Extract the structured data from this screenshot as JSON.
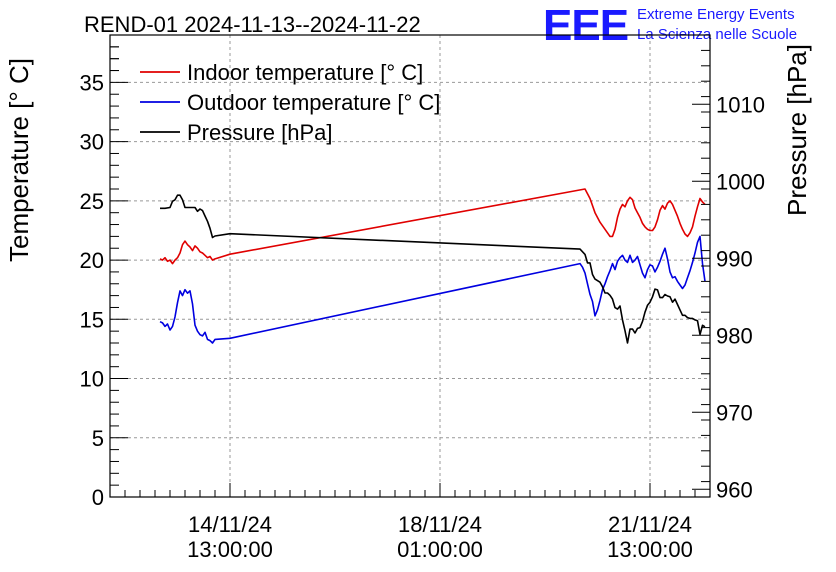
{
  "chart_data": {
    "type": "line",
    "title": "REND-01 2024-11-13--2024-11-22",
    "ylabel_left": "Temperature [° C]",
    "ylabel_right": "Pressure [hPa]",
    "xlabel": "",
    "x_range_hours": [
      0,
      240
    ],
    "ylim_left": [
      0,
      39
    ],
    "ylim_right": [
      959,
      1019
    ],
    "yticks_left": [
      0,
      5,
      10,
      15,
      20,
      25,
      30,
      35
    ],
    "yticks_right": [
      960,
      970,
      980,
      990,
      1000,
      1010
    ],
    "xticks": [
      {
        "t": 48,
        "line1": "14/11/24",
        "line2": "13:00:00"
      },
      {
        "t": 132,
        "line1": "18/11/24",
        "line2": "01:00:00"
      },
      {
        "t": 216,
        "line1": "21/11/24",
        "line2": "13:00:00"
      }
    ],
    "grid": true,
    "legend_position": "top-left",
    "series": [
      {
        "name": "Indoor temperature [° C]",
        "color": "#e00000",
        "axis": "left",
        "points": [
          [
            20,
            20.1
          ],
          [
            21,
            20.0
          ],
          [
            22,
            20.2
          ],
          [
            23,
            19.9
          ],
          [
            24,
            20.0
          ],
          [
            25,
            19.7
          ],
          [
            26,
            20.0
          ],
          [
            27,
            20.2
          ],
          [
            28,
            20.6
          ],
          [
            29,
            21.3
          ],
          [
            30,
            21.6
          ],
          [
            31,
            21.3
          ],
          [
            32,
            21.1
          ],
          [
            33,
            20.8
          ],
          [
            34,
            21.2
          ],
          [
            35,
            21.0
          ],
          [
            36,
            20.7
          ],
          [
            37,
            20.6
          ],
          [
            38,
            20.4
          ],
          [
            39,
            20.2
          ],
          [
            40,
            20.3
          ],
          [
            41,
            20.0
          ],
          [
            42,
            20.1
          ],
          [
            48,
            20.5
          ],
          [
            190,
            26.0
          ],
          [
            192,
            25.2
          ],
          [
            194,
            24.0
          ],
          [
            196,
            23.2
          ],
          [
            198,
            22.6
          ],
          [
            200,
            22.0
          ],
          [
            201,
            22.0
          ],
          [
            202,
            22.6
          ],
          [
            203,
            23.6
          ],
          [
            204,
            24.3
          ],
          [
            205,
            24.7
          ],
          [
            206,
            24.5
          ],
          [
            207,
            25.0
          ],
          [
            208,
            25.3
          ],
          [
            209,
            25.1
          ],
          [
            210,
            24.4
          ],
          [
            211,
            24.0
          ],
          [
            212,
            23.6
          ],
          [
            213,
            23.1
          ],
          [
            214,
            22.8
          ],
          [
            215,
            22.6
          ],
          [
            216,
            22.5
          ],
          [
            217,
            22.5
          ],
          [
            218,
            22.8
          ],
          [
            219,
            23.4
          ],
          [
            220,
            24.2
          ],
          [
            221,
            24.6
          ],
          [
            222,
            24.3
          ],
          [
            223,
            24.8
          ],
          [
            224,
            25.0
          ],
          [
            225,
            24.7
          ],
          [
            226,
            24.2
          ],
          [
            227,
            23.7
          ],
          [
            228,
            23.1
          ],
          [
            229,
            22.6
          ],
          [
            230,
            22.2
          ],
          [
            231,
            22.0
          ],
          [
            232,
            22.3
          ],
          [
            233,
            22.8
          ],
          [
            234,
            23.7
          ],
          [
            235,
            24.5
          ],
          [
            236,
            25.2
          ],
          [
            237,
            24.9
          ],
          [
            238,
            24.7
          ]
        ]
      },
      {
        "name": "Outdoor temperature [° C]",
        "color": "#0000e0",
        "axis": "left",
        "points": [
          [
            20,
            14.8
          ],
          [
            21,
            14.7
          ],
          [
            22,
            14.4
          ],
          [
            23,
            14.6
          ],
          [
            24,
            14.1
          ],
          [
            25,
            14.4
          ],
          [
            26,
            15.2
          ],
          [
            27,
            16.4
          ],
          [
            28,
            17.4
          ],
          [
            29,
            17.0
          ],
          [
            30,
            17.5
          ],
          [
            31,
            17.2
          ],
          [
            32,
            17.4
          ],
          [
            33,
            16.3
          ],
          [
            34,
            14.5
          ],
          [
            35,
            14.0
          ],
          [
            36,
            13.7
          ],
          [
            37,
            13.6
          ],
          [
            38,
            13.9
          ],
          [
            39,
            13.3
          ],
          [
            40,
            13.2
          ],
          [
            41,
            13.0
          ],
          [
            42,
            13.3
          ],
          [
            48,
            13.4
          ],
          [
            188,
            19.7
          ],
          [
            189,
            19.4
          ],
          [
            190,
            18.9
          ],
          [
            191,
            18.0
          ],
          [
            192,
            17.1
          ],
          [
            193,
            16.5
          ],
          [
            194,
            15.3
          ],
          [
            195,
            15.8
          ],
          [
            196,
            16.6
          ],
          [
            197,
            17.5
          ],
          [
            198,
            18.0
          ],
          [
            199,
            18.6
          ],
          [
            200,
            19.1
          ],
          [
            201,
            19.7
          ],
          [
            202,
            19.2
          ],
          [
            203,
            19.9
          ],
          [
            204,
            20.2
          ],
          [
            205,
            20.4
          ],
          [
            206,
            20.0
          ],
          [
            207,
            19.8
          ],
          [
            208,
            20.4
          ],
          [
            209,
            19.8
          ],
          [
            210,
            20.0
          ],
          [
            211,
            20.3
          ],
          [
            212,
            19.6
          ],
          [
            213,
            18.9
          ],
          [
            214,
            18.5
          ],
          [
            215,
            19.2
          ],
          [
            216,
            19.6
          ],
          [
            217,
            19.5
          ],
          [
            218,
            19.0
          ],
          [
            219,
            19.4
          ],
          [
            220,
            19.9
          ],
          [
            221,
            20.5
          ],
          [
            222,
            21.0
          ],
          [
            223,
            20.1
          ],
          [
            224,
            19.0
          ],
          [
            225,
            18.5
          ],
          [
            226,
            18.6
          ],
          [
            227,
            18.2
          ],
          [
            228,
            17.9
          ],
          [
            229,
            17.6
          ],
          [
            230,
            17.9
          ],
          [
            231,
            18.5
          ],
          [
            232,
            19.1
          ],
          [
            233,
            19.8
          ],
          [
            234,
            20.6
          ],
          [
            235,
            21.5
          ],
          [
            236,
            22.0
          ],
          [
            237,
            19.7
          ],
          [
            238,
            18.2
          ]
        ]
      },
      {
        "name": "Pressure [hPa]",
        "color": "#000000",
        "axis": "right",
        "points": [
          [
            20,
            996.5
          ],
          [
            22,
            996.5
          ],
          [
            24,
            996.6
          ],
          [
            25,
            997.4
          ],
          [
            26,
            997.6
          ],
          [
            27,
            998.2
          ],
          [
            28,
            998.2
          ],
          [
            29,
            997.6
          ],
          [
            30,
            996.6
          ],
          [
            32,
            996.6
          ],
          [
            34,
            996.6
          ],
          [
            35,
            996.1
          ],
          [
            36,
            996.4
          ],
          [
            37,
            996.2
          ],
          [
            38,
            995.5
          ],
          [
            39,
            994.8
          ],
          [
            40,
            993.9
          ],
          [
            41,
            992.7
          ],
          [
            42,
            992.9
          ],
          [
            48,
            993.2
          ],
          [
            188,
            991.2
          ],
          [
            190,
            990.5
          ],
          [
            191,
            989.4
          ],
          [
            192,
            989.4
          ],
          [
            193,
            987.9
          ],
          [
            194,
            987.3
          ],
          [
            196,
            986.9
          ],
          [
            197,
            986.3
          ],
          [
            198,
            985.5
          ],
          [
            199,
            985.5
          ],
          [
            200,
            985.2
          ],
          [
            201,
            984.7
          ],
          [
            202,
            983.6
          ],
          [
            203,
            983.4
          ],
          [
            204,
            983.8
          ],
          [
            205,
            982.0
          ],
          [
            206,
            980.6
          ],
          [
            207,
            979.0
          ],
          [
            208,
            980.8
          ],
          [
            209,
            980.8
          ],
          [
            210,
            980.3
          ],
          [
            211,
            980.9
          ],
          [
            212,
            981.0
          ],
          [
            213,
            981.8
          ],
          [
            214,
            983.0
          ],
          [
            215,
            983.9
          ],
          [
            216,
            984.3
          ],
          [
            217,
            985.0
          ],
          [
            218,
            986.0
          ],
          [
            219,
            985.9
          ],
          [
            220,
            984.9
          ],
          [
            221,
            984.9
          ],
          [
            222,
            985.3
          ],
          [
            223,
            985.1
          ],
          [
            224,
            985.0
          ],
          [
            225,
            984.3
          ],
          [
            226,
            984.7
          ],
          [
            227,
            984.0
          ],
          [
            228,
            983.3
          ],
          [
            229,
            982.6
          ],
          [
            230,
            982.6
          ],
          [
            231,
            982.3
          ],
          [
            232,
            982.2
          ],
          [
            233,
            982.2
          ],
          [
            234,
            982.0
          ],
          [
            235,
            981.9
          ],
          [
            236,
            980.1
          ],
          [
            237,
            981.3
          ],
          [
            238,
            981.1
          ]
        ]
      }
    ]
  },
  "logo": {
    "mark": "EEE",
    "line1": "Extreme Energy Events",
    "line2": "La Scienza nelle Scuole",
    "color": "#1a1aff"
  }
}
